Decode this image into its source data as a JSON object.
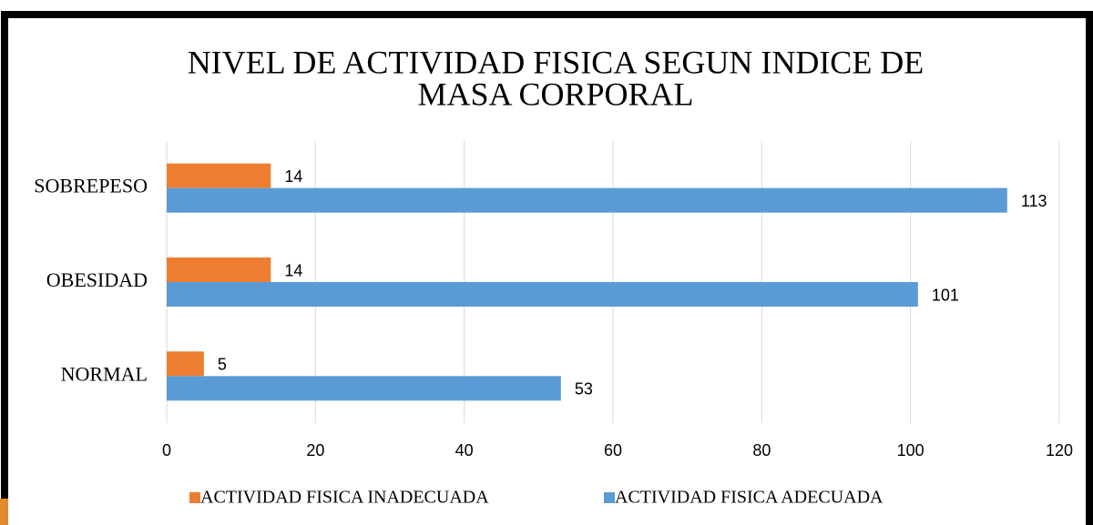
{
  "chart_data": {
    "type": "bar",
    "orientation": "horizontal",
    "title": [
      "NIVEL DE ACTIVIDAD FISICA SEGUN INDICE DE",
      "MASA CORPORAL"
    ],
    "categories": [
      "NORMAL",
      "OBESIDAD",
      "SOBREPESO"
    ],
    "series": [
      {
        "name": "ACTIVIDAD FISICA INADECUADA",
        "color": "#ed7d31",
        "values": [
          5,
          14,
          14
        ]
      },
      {
        "name": "ACTIVIDAD FISICA ADECUADA",
        "color": "#5b9bd5",
        "values": [
          53,
          101,
          113
        ]
      }
    ],
    "xlim": [
      0,
      120
    ],
    "xticks": [
      0,
      20,
      40,
      60,
      80,
      100,
      120
    ],
    "grid": true,
    "legend": "bottom"
  }
}
